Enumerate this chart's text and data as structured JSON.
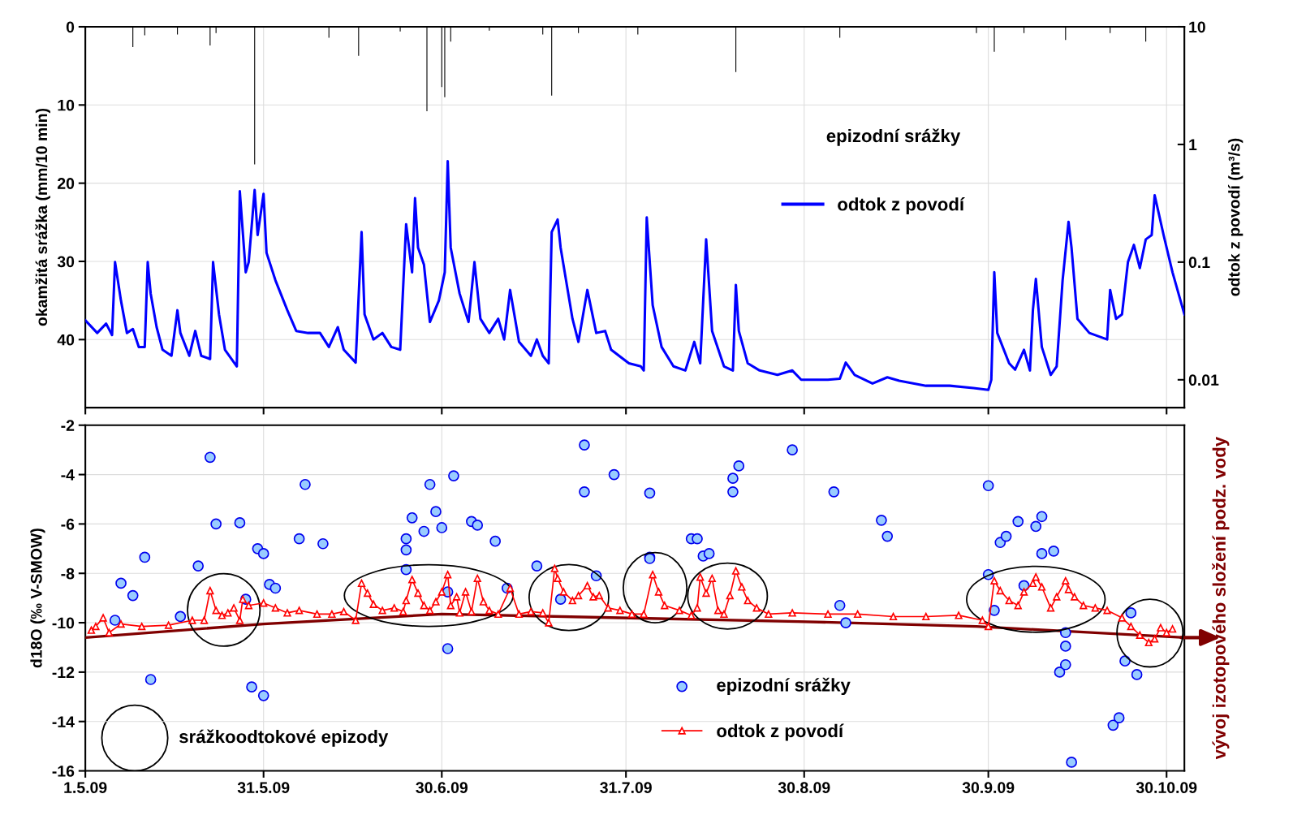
{
  "chart_data": [
    {
      "type": "bar",
      "ylabel": "okamžitá srážka (mm/10 min)",
      "y2label": "odtok z povodí (m³/s)",
      "xlim": [
        "2009-05-01",
        "2009-11-02"
      ],
      "xticks": [
        {
          "value": "2009-05-01",
          "label": null
        },
        {
          "value": "2009-05-31",
          "label": null
        },
        {
          "value": "2009-06-30",
          "label": null
        },
        {
          "value": "2009-07-31",
          "label": null
        },
        {
          "value": "2009-08-30",
          "label": null
        },
        {
          "value": "2009-09-30",
          "label": null
        },
        {
          "value": "2009-10-30",
          "label": null
        }
      ],
      "ylim": [
        48.7,
        0
      ],
      "yticks": [
        0,
        10,
        20,
        30,
        40
      ],
      "y2lim": [
        0.0058,
        10
      ],
      "y2ticks": [
        0.01,
        0.1,
        1,
        10
      ],
      "log": "y2",
      "grid": true,
      "legend": "top right",
      "tick_labels": "y",
      "annotations": [
        "epizodní srážky"
      ],
      "series": [
        {
          "color": "#000000",
          "x": [
            "2009-05-09",
            "2009-05-11",
            "2009-05-16T12:00",
            "2009-05-22",
            "2009-05-23",
            "2009-05-29T12:00",
            "2009-06-11",
            "2009-06-16",
            "2009-06-23",
            "2009-06-27T12:00",
            "2009-06-30",
            "2009-06-30T12:00",
            "2009-07-01T12:00",
            "2009-07-08",
            "2009-07-17",
            "2009-07-18T12:00",
            "2009-07-23",
            "2009-08-02",
            "2009-08-18T12:00",
            "2009-09-05",
            "2009-09-28",
            "2009-10-01",
            "2009-10-06",
            "2009-10-13",
            "2009-10-20T12:00",
            "2009-10-26T12:00"
          ],
          "values": [
            2.6,
            1.1,
            1.0,
            2.4,
            0.8,
            17.6,
            1.4,
            3.7,
            0.6,
            10.8,
            7.7,
            9.0,
            1.9,
            0.5,
            1.0,
            8.8,
            0.8,
            1.0,
            5.8,
            1.4,
            0.8,
            3.2,
            0.8,
            1.7,
            0.8,
            1.9
          ]
        },
        {
          "type": "line",
          "axis": "y2",
          "name": "odtok z povodí",
          "color": "#0000ff",
          "marker": "none",
          "line_style": "solid",
          "x": [
            "2009-05-01",
            "2009-05-03",
            "2009-05-04T12:00",
            "2009-05-05T12:00",
            "2009-05-06",
            "2009-05-07",
            "2009-05-08",
            "2009-05-09",
            "2009-05-10",
            "2009-05-11",
            "2009-05-11T12:00",
            "2009-05-12",
            "2009-05-13",
            "2009-05-14",
            "2009-05-15T12:00",
            "2009-05-16T12:00",
            "2009-05-17",
            "2009-05-18T12:00",
            "2009-05-19T12:00",
            "2009-05-20T12:00",
            "2009-05-22",
            "2009-05-22T12:00",
            "2009-05-23T12:00",
            "2009-05-24T12:00",
            "2009-05-26T12:00",
            "2009-05-27",
            "2009-05-28",
            "2009-05-28T12:00",
            "2009-05-29T12:00",
            "2009-05-30",
            "2009-05-31",
            "2009-05-31T12:00",
            "2009-06-02",
            "2009-06-04",
            "2009-06-05T12:00",
            "2009-06-07T12:00",
            "2009-06-09T12:00",
            "2009-06-11",
            "2009-06-12T12:00",
            "2009-06-13T12:00",
            "2009-06-15T12:00",
            "2009-06-16T12:00",
            "2009-06-17",
            "2009-06-18T12:00",
            "2009-06-20",
            "2009-06-21T12:00",
            "2009-06-23",
            "2009-06-24",
            "2009-06-25",
            "2009-06-25T12:00",
            "2009-06-26",
            "2009-06-27",
            "2009-06-28",
            "2009-06-29T12:00",
            "2009-06-30T12:00",
            "2009-07-01",
            "2009-07-01T12:00",
            "2009-07-03",
            "2009-07-04T12:00",
            "2009-07-05T12:00",
            "2009-07-06T12:00",
            "2009-07-08",
            "2009-07-09T12:00",
            "2009-07-10T12:00",
            "2009-07-11T12:00",
            "2009-07-13",
            "2009-07-15",
            "2009-07-16",
            "2009-07-17",
            "2009-07-18",
            "2009-07-18T12:00",
            "2009-07-19T12:00",
            "2009-07-20",
            "2009-07-22",
            "2009-07-23",
            "2009-07-24T12:00",
            "2009-07-26",
            "2009-07-27T12:00",
            "2009-07-28T12:00",
            "2009-07-31T12:00",
            "2009-08-02T12:00",
            "2009-08-03",
            "2009-08-03T12:00",
            "2009-08-04T12:00",
            "2009-08-06",
            "2009-08-08",
            "2009-08-10",
            "2009-08-11T12:00",
            "2009-08-12T12:00",
            "2009-08-13T12:00",
            "2009-08-14T12:00",
            "2009-08-16T12:00",
            "2009-08-18",
            "2009-08-18T12:00",
            "2009-08-19",
            "2009-08-20T12:00",
            "2009-08-22T12:00",
            "2009-08-25T12:00",
            "2009-08-28",
            "2009-08-29T12:00",
            "2009-09-03",
            "2009-09-05",
            "2009-09-06",
            "2009-09-07T12:00",
            "2009-09-10T12:00",
            "2009-09-13",
            "2009-09-15",
            "2009-09-19T12:00",
            "2009-09-23T12:00",
            "2009-09-27T12:00",
            "2009-09-30",
            "2009-09-30T12:00",
            "2009-10-01",
            "2009-10-01T12:00",
            "2009-10-03T12:00",
            "2009-10-04T12:00",
            "2009-10-06",
            "2009-10-07",
            "2009-10-07T12:00",
            "2009-10-08",
            "2009-10-09",
            "2009-10-10T12:00",
            "2009-10-11T12:00",
            "2009-10-12T12:00",
            "2009-10-13T12:00",
            "2009-10-14",
            "2009-10-15",
            "2009-10-17",
            "2009-10-20",
            "2009-10-20T12:00",
            "2009-10-21T12:00",
            "2009-10-22T12:00",
            "2009-10-23T12:00",
            "2009-10-24T12:00",
            "2009-10-25T12:00",
            "2009-10-26T12:00",
            "2009-10-27T12:00",
            "2009-10-28",
            "2009-10-29T12:00",
            "2009-10-31",
            "2009-11-02"
          ],
          "values": [
            0.032,
            0.025,
            0.03,
            0.024,
            0.1,
            0.047,
            0.025,
            0.027,
            0.019,
            0.019,
            0.1,
            0.054,
            0.028,
            0.018,
            0.016,
            0.039,
            0.025,
            0.016,
            0.026,
            0.016,
            0.015,
            0.1,
            0.036,
            0.018,
            0.013,
            0.4,
            0.082,
            0.1,
            0.41,
            0.17,
            0.38,
            0.12,
            0.07,
            0.039,
            0.026,
            0.025,
            0.025,
            0.019,
            0.028,
            0.018,
            0.014,
            0.18,
            0.036,
            0.022,
            0.025,
            0.019,
            0.018,
            0.21,
            0.082,
            0.35,
            0.133,
            0.095,
            0.031,
            0.047,
            0.082,
            0.72,
            0.133,
            0.054,
            0.031,
            0.1,
            0.033,
            0.025,
            0.033,
            0.022,
            0.058,
            0.021,
            0.016,
            0.022,
            0.016,
            0.0138,
            0.18,
            0.23,
            0.133,
            0.033,
            0.021,
            0.058,
            0.025,
            0.026,
            0.018,
            0.0138,
            0.013,
            0.012,
            0.24,
            0.043,
            0.019,
            0.013,
            0.012,
            0.021,
            0.0138,
            0.156,
            0.026,
            0.013,
            0.012,
            0.064,
            0.026,
            0.0138,
            0.012,
            0.011,
            0.012,
            0.01,
            0.01,
            0.0102,
            0.014,
            0.011,
            0.0093,
            0.0105,
            0.0098,
            0.0089,
            0.0089,
            0.0085,
            0.0082,
            0.01,
            0.082,
            0.025,
            0.0138,
            0.0122,
            0.018,
            0.012,
            0.039,
            0.072,
            0.019,
            0.011,
            0.013,
            0.07,
            0.22,
            0.133,
            0.033,
            0.025,
            0.022,
            0.058,
            0.033,
            0.036,
            0.1,
            0.14,
            0.089,
            0.156,
            0.17,
            0.37,
            0.17,
            0.082,
            0.036
          ]
        }
      ]
    },
    {
      "type": "scatter",
      "ylabel": "d18O (‰ V-SMOW)",
      "xlim": [
        "2009-05-01",
        "2009-11-02"
      ],
      "xticks": [
        {
          "value": "2009-05-01",
          "label": "1.5.09"
        },
        {
          "value": "2009-05-31",
          "label": "31.5.09"
        },
        {
          "value": "2009-06-30",
          "label": "30.6.09"
        },
        {
          "value": "2009-07-31",
          "label": "31.7.09"
        },
        {
          "value": "2009-08-30",
          "label": "30.8.09"
        },
        {
          "value": "2009-09-30",
          "label": "30.9.09"
        },
        {
          "value": "2009-10-30",
          "label": "30.10.09"
        }
      ],
      "ylim": [
        -16,
        -2
      ],
      "yticks": [
        -2,
        -4,
        -6,
        -8,
        -10,
        -12,
        -14,
        -16
      ],
      "grid": true,
      "legend": "bottom",
      "annotations": [
        "srážkoodtokové epizody"
      ],
      "series": [
        {
          "name": "epizodní srážky",
          "color": "#99ccff",
          "marker": "circle",
          "x": [
            "2009-05-06",
            "2009-05-07",
            "2009-05-09",
            "2009-05-11",
            "2009-05-12",
            "2009-05-17",
            "2009-05-20",
            "2009-05-22",
            "2009-05-23",
            "2009-05-27",
            "2009-05-28",
            "2009-05-29",
            "2009-05-30",
            "2009-05-31",
            "2009-05-31",
            "2009-06-01",
            "2009-06-02",
            "2009-06-06",
            "2009-06-07",
            "2009-06-10",
            "2009-06-24",
            "2009-06-24",
            "2009-06-24",
            "2009-06-25",
            "2009-06-27",
            "2009-06-28",
            "2009-06-29",
            "2009-06-30",
            "2009-07-01",
            "2009-07-01",
            "2009-07-02",
            "2009-07-05",
            "2009-07-06",
            "2009-07-09",
            "2009-07-11",
            "2009-07-16",
            "2009-07-20",
            "2009-07-24",
            "2009-07-24",
            "2009-07-26",
            "2009-07-29",
            "2009-08-04",
            "2009-08-04",
            "2009-08-04",
            "2009-08-11",
            "2009-08-12",
            "2009-08-13",
            "2009-08-14",
            "2009-08-18",
            "2009-08-19",
            "2009-08-18",
            "2009-08-28",
            "2009-09-04",
            "2009-09-05",
            "2009-09-06",
            "2009-09-12",
            "2009-09-13",
            "2009-09-30",
            "2009-09-30",
            "2009-10-01",
            "2009-10-02",
            "2009-10-03",
            "2009-10-05",
            "2009-10-06",
            "2009-10-08",
            "2009-10-09",
            "2009-10-09",
            "2009-10-11",
            "2009-10-12",
            "2009-10-13",
            "2009-10-13",
            "2009-10-13",
            "2009-10-14",
            "2009-10-21",
            "2009-10-22",
            "2009-10-23",
            "2009-10-24",
            "2009-10-25"
          ],
          "values": [
            -9.9,
            -8.4,
            -8.9,
            -7.35,
            -12.3,
            -9.75,
            -7.7,
            -3.3,
            -6.0,
            -5.95,
            -9.05,
            -12.6,
            -7.0,
            -7.2,
            -12.95,
            -8.45,
            -8.6,
            -6.6,
            -4.4,
            -6.8,
            -7.05,
            -6.6,
            -7.85,
            -5.75,
            -6.3,
            -4.4,
            -5.5,
            -6.15,
            -8.75,
            -11.05,
            -4.05,
            -5.9,
            -6.05,
            -6.7,
            -8.6,
            -7.7,
            -9.05,
            -2.8,
            -4.7,
            -8.1,
            -4.0,
            -4.75,
            -7.35,
            -7.4,
            -6.6,
            -6.6,
            -7.3,
            -7.2,
            -4.15,
            -3.65,
            -4.7,
            -3.0,
            -4.7,
            -9.3,
            -10.0,
            -5.85,
            -6.5,
            -4.45,
            -8.05,
            -9.5,
            -6.75,
            -6.5,
            -5.9,
            -8.5,
            -6.1,
            -5.7,
            -7.2,
            -7.1,
            -12.0,
            -10.95,
            -11.7,
            -10.4,
            -15.65,
            -14.15,
            -13.85,
            -11.55,
            -9.6,
            -12.1
          ]
        },
        {
          "type": "line",
          "name": "odtok z povodí",
          "color": "#ff0000",
          "marker": "triangle",
          "line_style": "solid",
          "x": [
            "2009-05-02",
            "2009-05-02T18:00",
            "2009-05-04",
            "2009-05-05",
            "2009-05-07",
            "2009-05-10T12:00",
            "2009-05-15",
            "2009-05-19",
            "2009-05-21",
            "2009-05-22",
            "2009-05-23",
            "2009-05-24",
            "2009-05-25",
            "2009-05-26",
            "2009-05-27",
            "2009-05-27T12:00",
            "2009-05-28T12:00",
            "2009-05-31",
            "2009-06-02",
            "2009-06-04",
            "2009-06-06",
            "2009-06-09",
            "2009-06-11T12:00",
            "2009-06-13T12:00",
            "2009-06-15T12:00",
            "2009-06-16T12:00",
            "2009-06-17T12:00",
            "2009-06-18T12:00",
            "2009-06-20",
            "2009-06-22",
            "2009-06-23T12:00",
            "2009-06-24",
            "2009-06-25",
            "2009-06-26",
            "2009-06-27",
            "2009-06-28",
            "2009-06-29",
            "2009-06-30",
            "2009-07-01",
            "2009-07-01T12:00",
            "2009-07-02T12:00",
            "2009-07-03",
            "2009-07-04",
            "2009-07-05",
            "2009-07-06",
            "2009-07-07",
            "2009-07-08",
            "2009-07-09T12:00",
            "2009-07-11T12:00",
            "2009-07-13",
            "2009-07-15",
            "2009-07-17",
            "2009-07-18",
            "2009-07-19",
            "2009-07-19T12:00",
            "2009-07-20T12:00",
            "2009-07-22",
            "2009-07-23",
            "2009-07-24T12:00",
            "2009-07-25T12:00",
            "2009-07-26T12:00",
            "2009-07-28",
            "2009-07-30",
            "2009-08-01",
            "2009-08-03",
            "2009-08-04T12:00",
            "2009-08-05T12:00",
            "2009-08-06T12:00",
            "2009-08-09",
            "2009-08-11",
            "2009-08-12",
            "2009-08-12T12:00",
            "2009-08-13T12:00",
            "2009-08-14T12:00",
            "2009-08-15T12:00",
            "2009-08-16T12:00",
            "2009-08-17T12:00",
            "2009-08-18T12:00",
            "2009-08-19T12:00",
            "2009-08-20T12:00",
            "2009-08-22",
            "2009-08-24",
            "2009-08-28",
            "2009-09-03",
            "2009-09-08",
            "2009-09-14",
            "2009-09-19T12:00",
            "2009-09-25",
            "2009-09-29",
            "2009-09-30",
            "2009-10-01",
            "2009-10-02",
            "2009-10-03T12:00",
            "2009-10-05",
            "2009-10-06",
            "2009-10-07T12:00",
            "2009-10-08",
            "2009-10-09",
            "2009-10-10T12:00",
            "2009-10-11T12:00",
            "2009-10-13",
            "2009-10-13T12:00",
            "2009-10-14T12:00",
            "2009-10-16",
            "2009-10-18",
            "2009-10-20",
            "2009-10-22T12:00",
            "2009-10-24",
            "2009-10-25T12:00",
            "2009-10-27",
            "2009-10-28",
            "2009-10-29",
            "2009-10-30",
            "2009-10-31"
          ],
          "values": [
            -10.3,
            -10.15,
            -9.8,
            -10.4,
            -10.05,
            -10.15,
            -10.1,
            -9.9,
            -9.9,
            -8.7,
            -9.5,
            -9.7,
            -9.6,
            -9.4,
            -9.9,
            -9.05,
            -9.3,
            -9.2,
            -9.4,
            -9.6,
            -9.5,
            -9.65,
            -9.65,
            -9.55,
            -9.9,
            -8.4,
            -8.8,
            -9.25,
            -9.5,
            -9.4,
            -9.55,
            -9.1,
            -8.25,
            -8.8,
            -9.3,
            -9.5,
            -9.15,
            -8.75,
            -8.05,
            -9.3,
            -8.95,
            -9.6,
            -8.75,
            -9.55,
            -8.2,
            -9.15,
            -9.5,
            -9.65,
            -8.6,
            -9.65,
            -9.55,
            -9.6,
            -10.0,
            -7.8,
            -8.2,
            -8.75,
            -9.1,
            -8.9,
            -8.5,
            -8.95,
            -8.9,
            -9.4,
            -9.5,
            -9.65,
            -9.65,
            -8.05,
            -8.75,
            -9.3,
            -9.5,
            -9.7,
            -9.4,
            -8.15,
            -8.8,
            -8.2,
            -9.5,
            -9.65,
            -8.9,
            -7.9,
            -8.55,
            -9.1,
            -9.4,
            -9.65,
            -9.6,
            -9.65,
            -9.65,
            -9.75,
            -9.75,
            -9.7,
            -9.9,
            -10.15,
            -8.3,
            -8.7,
            -9.1,
            -9.3,
            -8.75,
            -8.4,
            -8.15,
            -8.55,
            -9.4,
            -8.95,
            -8.3,
            -8.65,
            -8.95,
            -9.3,
            -9.4,
            -9.5,
            -9.8,
            -10.15,
            -10.5,
            -10.8,
            -10.65,
            -10.2,
            -10.4,
            -10.25
          ]
        },
        {
          "type": "line",
          "name": "vývoj izotopového složení podz. vody",
          "color": "#800000",
          "line_style": "solid",
          "x": [
            "2009-05-01",
            "2009-05-31",
            "2009-06-30",
            "2009-07-30",
            "2009-08-29",
            "2009-09-28",
            "2009-11-02"
          ],
          "values": [
            -10.6,
            -10.05,
            -9.65,
            -9.8,
            -9.95,
            -10.15,
            -10.6
          ]
        }
      ]
    }
  ]
}
